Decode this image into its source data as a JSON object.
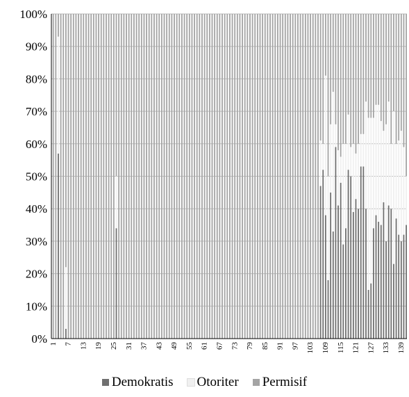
{
  "chart_data": {
    "type": "bar",
    "stacked": true,
    "normalized": true,
    "ylim": [
      0,
      100
    ],
    "yticks": [
      "0%",
      "10%",
      "20%",
      "30%",
      "40%",
      "50%",
      "60%",
      "70%",
      "80%",
      "90%",
      "100%"
    ],
    "x_range": [
      1,
      141
    ],
    "xticks": [
      1,
      7,
      13,
      19,
      25,
      31,
      37,
      43,
      49,
      55,
      61,
      67,
      73,
      79,
      85,
      91,
      97,
      103,
      109,
      115,
      121,
      127,
      133,
      139
    ],
    "legend_position": "bottom",
    "grid": "horizontal",
    "colors": {
      "Demokratis": "#707070",
      "Otoriter": "#f0f0f0",
      "Permisif": "#a4a4a4"
    },
    "series": [
      {
        "name": "Demokratis",
        "values": [
          0,
          0,
          57,
          0,
          0,
          3,
          0,
          0,
          0,
          0,
          0,
          0,
          0,
          0,
          0,
          0,
          0,
          0,
          0,
          0,
          0,
          0,
          0,
          0,
          0,
          34,
          0,
          0,
          0,
          0,
          0,
          0,
          0,
          0,
          0,
          0,
          0,
          0,
          0,
          0,
          0,
          0,
          0,
          0,
          0,
          0,
          0,
          0,
          0,
          0,
          0,
          0,
          0,
          0,
          0,
          0,
          0,
          0,
          0,
          0,
          0,
          0,
          0,
          0,
          0,
          0,
          0,
          0,
          0,
          0,
          0,
          0,
          0,
          0,
          0,
          0,
          0,
          0,
          0,
          0,
          0,
          0,
          0,
          0,
          0,
          0,
          0,
          0,
          0,
          0,
          0,
          0,
          0,
          0,
          0,
          0,
          0,
          0,
          0,
          0,
          0,
          0,
          0,
          0,
          0,
          0,
          47,
          52,
          38,
          18,
          45,
          33,
          59,
          41,
          48,
          29,
          34,
          52,
          50,
          39,
          43,
          40,
          53,
          53,
          40,
          15,
          17,
          34,
          38,
          36,
          35,
          42,
          30,
          41,
          40,
          23,
          37,
          32,
          30,
          32,
          35
        ]
      },
      {
        "name": "Otoriter",
        "values": [
          0,
          0,
          36,
          0,
          0,
          19,
          0,
          0,
          0,
          0,
          0,
          0,
          0,
          0,
          0,
          0,
          0,
          0,
          0,
          0,
          0,
          0,
          0,
          0,
          0,
          16,
          0,
          0,
          0,
          0,
          0,
          0,
          0,
          0,
          0,
          0,
          0,
          0,
          0,
          0,
          0,
          0,
          0,
          0,
          0,
          0,
          0,
          0,
          0,
          0,
          0,
          0,
          0,
          0,
          0,
          0,
          0,
          0,
          0,
          0,
          0,
          0,
          0,
          0,
          0,
          0,
          0,
          0,
          0,
          0,
          0,
          0,
          0,
          0,
          0,
          0,
          0,
          0,
          0,
          0,
          0,
          0,
          0,
          0,
          0,
          0,
          0,
          0,
          0,
          0,
          0,
          0,
          0,
          0,
          0,
          0,
          0,
          0,
          0,
          0,
          0,
          0,
          0,
          0,
          0,
          0,
          14,
          8,
          43,
          32,
          21,
          43,
          7,
          17,
          8,
          31,
          26,
          17,
          9,
          21,
          14,
          20,
          10,
          10,
          33,
          53,
          51,
          34,
          34,
          36,
          32,
          22,
          36,
          32,
          20,
          47,
          23,
          29,
          34,
          27,
          15
        ]
      },
      {
        "name": "Permisif",
        "values": [
          100,
          100,
          7,
          100,
          100,
          78,
          100,
          100,
          100,
          100,
          100,
          100,
          100,
          100,
          100,
          100,
          100,
          100,
          100,
          100,
          100,
          100,
          100,
          100,
          100,
          50,
          100,
          100,
          100,
          100,
          100,
          100,
          100,
          100,
          100,
          100,
          100,
          100,
          100,
          100,
          100,
          100,
          100,
          100,
          100,
          100,
          100,
          100,
          100,
          100,
          100,
          100,
          100,
          100,
          100,
          100,
          100,
          100,
          100,
          100,
          100,
          100,
          100,
          100,
          100,
          100,
          100,
          100,
          100,
          100,
          100,
          100,
          100,
          100,
          100,
          100,
          100,
          100,
          100,
          100,
          100,
          100,
          100,
          100,
          100,
          100,
          100,
          100,
          100,
          100,
          100,
          100,
          100,
          100,
          100,
          100,
          100,
          100,
          100,
          100,
          100,
          100,
          100,
          100,
          100,
          100,
          39,
          40,
          19,
          50,
          34,
          24,
          34,
          42,
          44,
          40,
          40,
          31,
          41,
          40,
          43,
          40,
          37,
          37,
          27,
          32,
          32,
          32,
          28,
          28,
          33,
          36,
          34,
          27,
          40,
          30,
          40,
          39,
          36,
          41,
          50
        ]
      }
    ]
  }
}
